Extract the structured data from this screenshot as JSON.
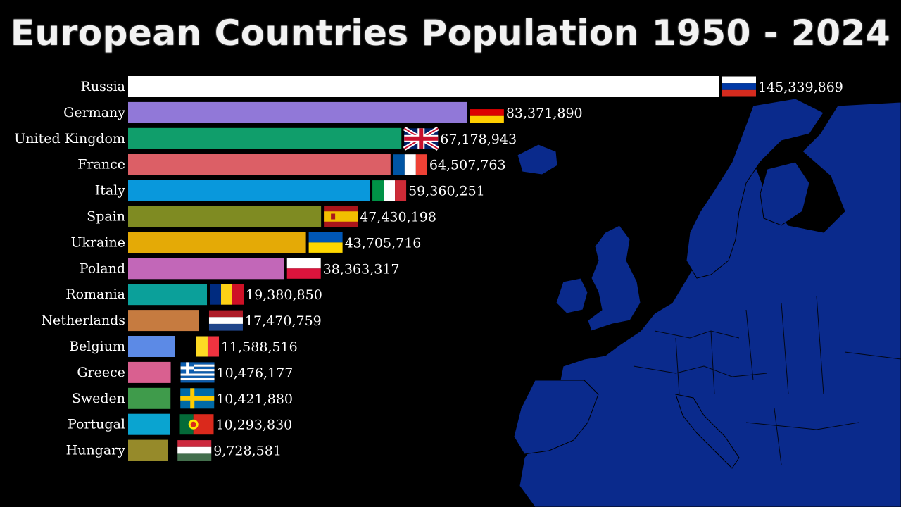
{
  "title": "European Countries Population 1950 - 2024",
  "chart_data": {
    "type": "bar",
    "orientation": "horizontal",
    "title": "European Countries Population 1950 - 2024",
    "xlabel": "",
    "ylabel": "",
    "xlim": [
      0,
      145339869
    ],
    "grid": false,
    "legend": "none",
    "categories": [
      "Russia",
      "Germany",
      "United Kingdom",
      "France",
      "Italy",
      "Spain",
      "Ukraine",
      "Poland",
      "Romania",
      "Netherlands",
      "Belgium",
      "Greece",
      "Sweden",
      "Portugal",
      "Hungary"
    ],
    "values": [
      145339869,
      83371890,
      67178943,
      64507763,
      59360251,
      47430198,
      43705716,
      38363317,
      19380850,
      17470759,
      11588516,
      10476177,
      10421880,
      10293830,
      9728581
    ],
    "value_labels": [
      "145,339,869",
      "83,371,890",
      "67,178,943",
      "64,507,763",
      "59,360,251",
      "47,430,198",
      "43,705,716",
      "38,363,317",
      "19,380,850",
      "17,470,759",
      "11,588,516",
      "10,476,177",
      "10,421,880",
      "10,293,830",
      "9,728,581"
    ],
    "bar_colors": [
      "#ffffff",
      "#9178d8",
      "#109e6b",
      "#dc5f66",
      "#0998dc",
      "#7f8b22",
      "#e4aa06",
      "#c267b8",
      "#0ba09a",
      "#c67b40",
      "#5c8ae6",
      "#d96090",
      "#3f9b4b",
      "#0aa4d0",
      "#968a2a"
    ],
    "flags": [
      "russia-flag",
      "germany-flag",
      "united-kingdom-flag",
      "france-flag",
      "italy-flag",
      "spain-flag",
      "ukraine-flag",
      "poland-flag",
      "romania-flag",
      "netherlands-flag",
      "belgium-flag",
      "greece-flag",
      "sweden-flag",
      "portugal-flag",
      "hungary-flag"
    ]
  },
  "background_map": {
    "description_icon": "europe-map",
    "fill_color": "#0a2a8c"
  }
}
